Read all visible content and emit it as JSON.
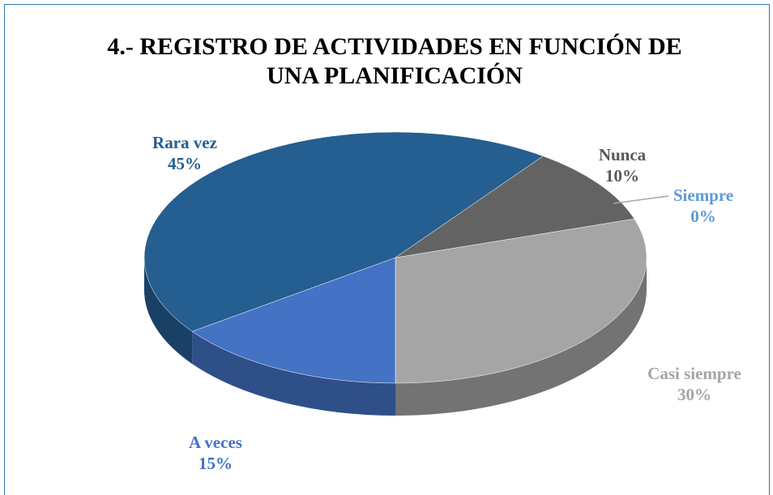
{
  "chart_data": {
    "type": "pie",
    "title": "4.- REGISTRO DE ACTIVIDADES EN FUNCIÓN DE UNA PLANIFICACIÓN",
    "categories": [
      "Siempre",
      "Casi siempre",
      "A veces",
      "Rara vez",
      "Nunca"
    ],
    "values": [
      0,
      30,
      15,
      45,
      10
    ],
    "value_labels": [
      "0%",
      "30%",
      "15%",
      "45%",
      "10%"
    ],
    "colors": [
      "#5b9bd5",
      "#a5a5a5",
      "#4472c4",
      "#255e91",
      "#636363"
    ],
    "label_colors": [
      "#5b9bd5",
      "#a5a5a5",
      "#4472c4",
      "#255e91",
      "#595959"
    ]
  }
}
